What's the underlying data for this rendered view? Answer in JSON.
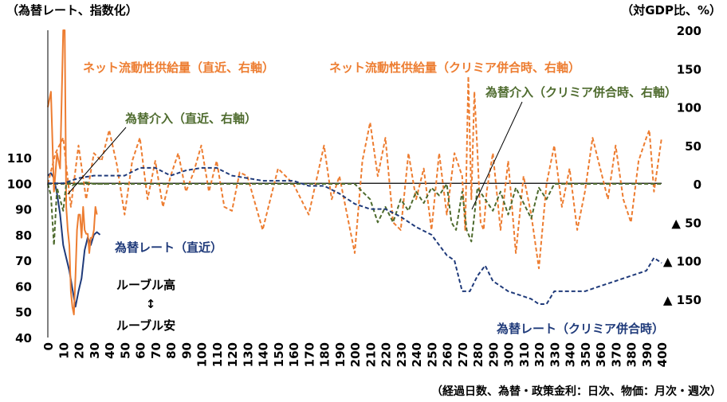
{
  "chart_data": {
    "type": "line",
    "y_left_label": "（為替レート、指数化）",
    "y_right_label": "（対GDP比、%）",
    "x_label": "（経過日数、為替・政策金利：日次、物価：月次・週次）",
    "x_range": [
      0,
      400
    ],
    "x_ticks": [
      "0",
      "10",
      "20",
      "30",
      "40",
      "50",
      "60",
      "70",
      "80",
      "90",
      "100",
      "110",
      "120",
      "130",
      "140",
      "150",
      "160",
      "170",
      "180",
      "190",
      "200",
      "210",
      "220",
      "230",
      "240",
      "250",
      "260",
      "270",
      "280",
      "290",
      "300",
      "310",
      "320",
      "330",
      "340",
      "350",
      "360",
      "370",
      "380",
      "390",
      "400"
    ],
    "y_left_range": [
      40,
      110
    ],
    "y_left_ticks": [
      "40",
      "50",
      "60",
      "70",
      "80",
      "90",
      "100",
      "110"
    ],
    "y_right_range": [
      -200,
      200
    ],
    "y_right_ticks": [
      {
        "v": 200,
        "t": "200"
      },
      {
        "v": 150,
        "t": "150"
      },
      {
        "v": 100,
        "t": "100"
      },
      {
        "v": 50,
        "t": "50"
      },
      {
        "v": 0,
        "t": "0"
      },
      {
        "v": -50,
        "t": "▲ 50"
      },
      {
        "v": -100,
        "t": "▲ 100"
      },
      {
        "v": -150,
        "t": "▲ 150"
      }
    ],
    "grid": "horizontal at left axis 100",
    "colors": {
      "orange": "#ED7D31",
      "navy": "#1F3A7A",
      "green": "#4E6B2E"
    },
    "series": [
      {
        "name": "為替レート（直近）",
        "axis": "left",
        "style": "solid",
        "color": "#1F3A7A",
        "x": [
          0,
          2,
          4,
          6,
          8,
          10,
          12,
          14,
          16,
          18,
          20,
          22,
          24,
          26,
          28,
          30,
          32,
          34
        ],
        "y": [
          103,
          104,
          102,
          96,
          88,
          76,
          71,
          66,
          59,
          52,
          58,
          63,
          74,
          79,
          76,
          80,
          81,
          80
        ]
      },
      {
        "name": "ネット流動性供給量（直近、右軸）",
        "axis": "right",
        "style": "solid",
        "color": "#ED7D31",
        "x": [
          0,
          2,
          4,
          6,
          8,
          10,
          11,
          12,
          13,
          14,
          15,
          16,
          17,
          18,
          19,
          20,
          21,
          22,
          23,
          24,
          25,
          26,
          27,
          28,
          29,
          30,
          31,
          32
        ],
        "y": [
          100,
          120,
          -10,
          40,
          20,
          200,
          200,
          -30,
          -60,
          -80,
          -140,
          -160,
          -170,
          -120,
          -60,
          -40,
          -40,
          -70,
          -30,
          -60,
          -65,
          -65,
          -90,
          -70,
          -70,
          -60,
          -30,
          -40
        ]
      },
      {
        "name": "ネット流動性供給量（クリミア併合時、右軸）",
        "axis": "right",
        "style": "dashed",
        "color": "#ED7D31",
        "x": [
          0,
          5,
          10,
          15,
          20,
          25,
          30,
          35,
          40,
          45,
          50,
          55,
          60,
          65,
          70,
          75,
          80,
          85,
          90,
          95,
          100,
          105,
          110,
          115,
          120,
          125,
          130,
          135,
          140,
          150,
          160,
          170,
          180,
          185,
          190,
          195,
          200,
          205,
          210,
          215,
          220,
          225,
          230,
          235,
          240,
          245,
          250,
          255,
          260,
          265,
          270,
          272,
          274,
          276,
          278,
          280,
          282,
          284,
          286,
          290,
          295,
          300,
          305,
          310,
          315,
          320,
          325,
          330,
          335,
          340,
          345,
          350,
          355,
          360,
          365,
          370,
          375,
          380,
          385,
          390,
          392,
          395,
          400
        ],
        "y": [
          0,
          40,
          60,
          -30,
          50,
          -20,
          40,
          30,
          70,
          25,
          -40,
          30,
          60,
          -20,
          30,
          -30,
          10,
          40,
          -10,
          15,
          50,
          -10,
          30,
          -30,
          -35,
          15,
          10,
          -25,
          -60,
          20,
          0,
          -40,
          50,
          -20,
          10,
          -40,
          -90,
          30,
          80,
          10,
          60,
          -50,
          -60,
          40,
          -20,
          20,
          -60,
          40,
          -40,
          40,
          10,
          -60,
          140,
          -20,
          120,
          40,
          -50,
          -60,
          -10,
          40,
          -60,
          30,
          -90,
          10,
          -40,
          -110,
          0,
          50,
          -30,
          20,
          -60,
          -10,
          60,
          20,
          -20,
          50,
          -20,
          -50,
          30,
          60,
          70,
          -10,
          60
        ]
      },
      {
        "name": "為替介入（直近、右軸）",
        "axis": "right",
        "style": "dashed",
        "color": "#4E6B2E",
        "x": [
          0,
          2,
          4,
          6,
          8,
          10,
          12,
          14,
          16,
          18,
          20,
          25,
          30,
          35,
          40
        ],
        "y": [
          0,
          -15,
          -80,
          -5,
          -20,
          -35,
          0,
          2,
          -2,
          0,
          0,
          2,
          0,
          0,
          0
        ]
      },
      {
        "name": "為替介入（クリミア併合時、右軸）",
        "axis": "right",
        "style": "dashed",
        "color": "#4E6B2E",
        "x": [
          0,
          50,
          100,
          150,
          200,
          205,
          210,
          215,
          220,
          225,
          230,
          235,
          240,
          245,
          250,
          255,
          260,
          263,
          266,
          270,
          273,
          276,
          280,
          285,
          290,
          295,
          300,
          305,
          310,
          315,
          320,
          325,
          330,
          340,
          360,
          380,
          400
        ],
        "y": [
          0,
          0,
          0,
          0,
          0,
          -10,
          -20,
          -50,
          -30,
          -50,
          -20,
          -35,
          -10,
          -25,
          -5,
          -15,
          0,
          -50,
          -60,
          -10,
          -60,
          -75,
          -5,
          -20,
          -35,
          -10,
          -40,
          -5,
          -25,
          -45,
          -5,
          -20,
          0,
          0,
          0,
          0,
          0
        ]
      },
      {
        "name": "為替レート（クリミア併合時）",
        "axis": "left",
        "style": "dashed",
        "color": "#1F3A7A",
        "x": [
          0,
          10,
          20,
          30,
          40,
          50,
          60,
          70,
          80,
          90,
          100,
          110,
          120,
          130,
          140,
          150,
          160,
          170,
          180,
          190,
          200,
          210,
          220,
          230,
          240,
          250,
          260,
          265,
          270,
          275,
          280,
          285,
          290,
          295,
          300,
          305,
          310,
          315,
          320,
          325,
          330,
          340,
          350,
          360,
          370,
          380,
          390,
          395,
          400
        ],
        "y": [
          100,
          100,
          102,
          103,
          103,
          103,
          106,
          106,
          103,
          105,
          106,
          106,
          103,
          102,
          101,
          101,
          101,
          99,
          99,
          96,
          92,
          90,
          90,
          87,
          83,
          80,
          72,
          70,
          58,
          58,
          64,
          68,
          62,
          60,
          58,
          57,
          56,
          55,
          53,
          53,
          58,
          58,
          58,
          60,
          62,
          64,
          66,
          71,
          69
        ]
      }
    ],
    "annotations": [
      "ネット流動性供給量（直近、右軸）",
      "ネット流動性供給量（クリミア併合時、右軸）",
      "為替介入（クリミア併合時、右軸）",
      "為替介入（直近、右軸）",
      "為替レート（直近）",
      "ルーブル高",
      "↕",
      "ルーブル安",
      "為替レート（クリミア併合時）"
    ]
  }
}
